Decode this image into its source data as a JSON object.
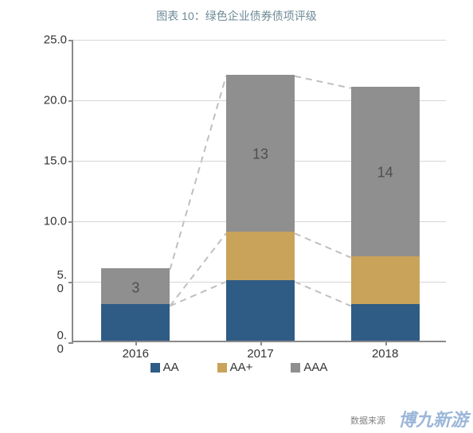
{
  "title": "图表 10：绿色企业债券债项评级",
  "title_color": "#6d8a96",
  "title_fontsize": 14,
  "chart": {
    "type": "stacked-bar",
    "background": "#ffffff",
    "axis_color": "#8a8a8a",
    "grid_color": "#d6d6d6",
    "tick_color": "#333333",
    "bar_width_ratio": 0.55,
    "ylim": [
      0,
      25
    ],
    "ytick_step": 5,
    "yticks": [
      "0. 0",
      "5. 0",
      "10.0",
      "15.0",
      "20.0",
      "25.0"
    ],
    "categories": [
      "2016",
      "2017",
      "2018"
    ],
    "series": [
      {
        "name": "AA",
        "color": "#2f5c84",
        "values": [
          3,
          5,
          3
        ]
      },
      {
        "name": "AA+",
        "color": "#c9a35a",
        "values": [
          0,
          4,
          4
        ]
      },
      {
        "name": "AAA",
        "color": "#8f8f8f",
        "values": [
          3,
          13,
          14
        ]
      }
    ],
    "bar_labels": [
      {
        "cat": 0,
        "seg": 2,
        "text": "3",
        "color": "#4f4f4f"
      },
      {
        "cat": 1,
        "seg": 2,
        "text": "13",
        "color": "#4f4f4f"
      },
      {
        "cat": 2,
        "seg": 2,
        "text": "14",
        "color": "#4f4f4f"
      }
    ],
    "dash_lines": {
      "enabled": true,
      "color": "#bfbfbf",
      "levels": [
        "AA",
        "AA+",
        "AAA"
      ]
    },
    "legend_gap": 48
  },
  "watermark": {
    "text": "博九新游",
    "color": "#3a6fb5"
  },
  "source_label": "数据来源"
}
